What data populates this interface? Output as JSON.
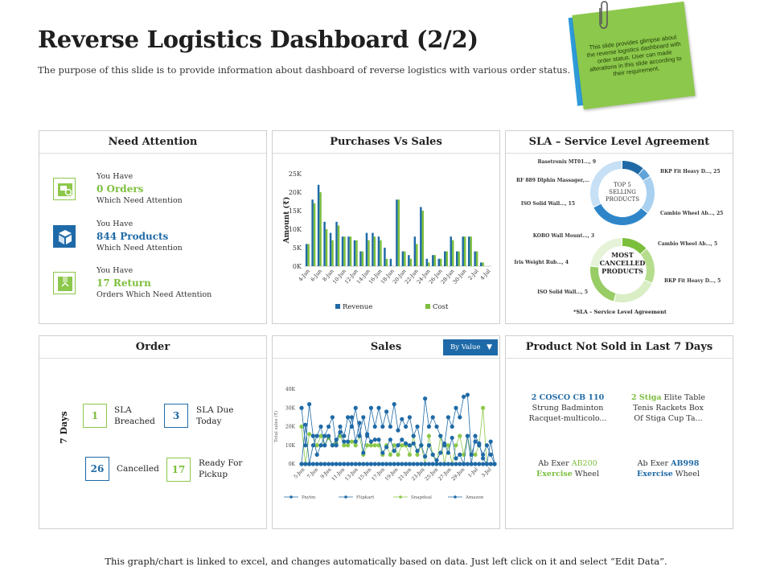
{
  "header": {
    "title": "Reverse Logistics Dashboard (2/2)",
    "subtitle": "The purpose of this slide is to provide information about dashboard of reverse logistics with various order status."
  },
  "sticky_note": {
    "text": "This slide provides glimpse about the reverse logistics dashboard with order status. User can made alterations in this slide according to their requirement."
  },
  "need_attention": {
    "title": "Need Attention",
    "items": [
      {
        "prefix": "You Have",
        "value": "0 Orders",
        "suffix": "Which Need Attention",
        "icon": "cart-search-icon"
      },
      {
        "prefix": "You Have",
        "value": "844 Products",
        "suffix": "Which Need Attention",
        "icon": "boxes-icon"
      },
      {
        "prefix": "You Have",
        "value": "17 Return",
        "suffix": "Orders Which Need Attention",
        "icon": "return-box-icon"
      }
    ]
  },
  "purchases_vs_sales": {
    "title": "Purchases Vs Sales",
    "legend": [
      "Revenue",
      "Cost"
    ]
  },
  "sla": {
    "title": "SLA – Service Level Agreement",
    "top_center": "TOP 5 SELLING PRODUCTS",
    "top_labels": [
      "Basetronix MT01..., 9",
      "RF 889 Dlphin Massager,...",
      "ISO Solid Wall..., 15",
      "BKP Fit Heavy D..., 25",
      "Cambio Wheel Ab..., 25"
    ],
    "bottom_center": "MOST CANCELLED PRODUCTS",
    "bottom_labels": [
      "KOBO Wall Mount..., 3",
      "Iris Weight Rub..., 4",
      "ISO Solid Wall..., 5",
      "Cambio Wheel Ab..., 5",
      "BKP Fit Heavy D..., 5"
    ],
    "note": "*SLA – Service Level Agreement",
    "colors": {
      "top": [
        "#1f6aa6",
        "#5fa3d9",
        "#a9d0f0",
        "#2e86c9",
        "#c7e0f5"
      ],
      "bottom": [
        "#7cbf3d",
        "#b6dc8d",
        "#d9eec4",
        "#98cc64",
        "#e6f3d8"
      ]
    }
  },
  "order": {
    "title": "Order",
    "days_label": "7 Days",
    "boxes": [
      {
        "num": "1",
        "label1": "SLA",
        "label2": "Breached"
      },
      {
        "num": "3",
        "label1": "SLA Due",
        "label2": "Today"
      },
      {
        "num": "26",
        "label1": "Cancelled",
        "label2": ""
      },
      {
        "num": "17",
        "label1": "Ready For",
        "label2": "Pickup"
      }
    ]
  },
  "sales": {
    "title": "Sales",
    "dropdown": "By Value",
    "legend": [
      "Paytm",
      "Flipkart",
      "Snapdeal",
      "Amazon"
    ]
  },
  "not_sold": {
    "title": "Product Not Sold in Last 7 Days",
    "items": [
      {
        "a": "2 COSCO CB 110",
        "b": "Strung Badminton",
        "c": "Racquet-multicolo..."
      },
      {
        "a1": "2 Stiga",
        "a2": " Elite Table",
        "b": "Tenis Rackets Box",
        "c": "Of Stiga Cup Ta..."
      },
      {
        "a1": "Ab Exer ",
        "a2": "AB200",
        "b1": "Exercise",
        "b2": " Wheel"
      },
      {
        "a1": "Ab Exer ",
        "a2": "AB998",
        "b1": "Exercise",
        "b2": " Wheel"
      }
    ]
  },
  "footer": {
    "text": "This graph/chart  is linked to excel, and changes automatically  based on data. Just left click on it and select “Edit Data”."
  },
  "chart_data": [
    {
      "type": "bar",
      "title": "Purchases Vs Sales",
      "ylabel": "Amount (₹)",
      "ylim": [
        0,
        25000
      ],
      "yticks": [
        "0K",
        "5K",
        "10K",
        "15K",
        "20K",
        "25K"
      ],
      "categories": [
        "4-Jun",
        "5-Jun",
        "6-Jun",
        "7-Jun",
        "8-Jun",
        "9-Jun",
        "10-Jun",
        "11-Jun",
        "12-Jun",
        "13-Jun",
        "14-Jun",
        "15-Jun",
        "16-Jun",
        "17-Jun",
        "18-Jun",
        "19-Jun",
        "20-Jun",
        "21-Jun",
        "22-Jun",
        "23-Jun",
        "24-Jun",
        "25-Jun",
        "26-Jun",
        "27-Jun",
        "28-Jun",
        "29-Jun",
        "30-Jun",
        "1-Jul",
        "2-Jul",
        "3-Jul",
        "4-Jul"
      ],
      "tick_labels": [
        "4-Jun",
        "6-Jun",
        "8-Jun",
        "10-Jun",
        "12-Jun",
        "14-Jun",
        "16-Jun",
        "18-Jun",
        "20-Jun",
        "22-Jun",
        "24-Jun",
        "26-Jun",
        "28-Jun",
        "30-Jun",
        "2-Jul",
        "4-Jul"
      ],
      "series": [
        {
          "name": "Revenue",
          "color": "#1f6aa6",
          "values": [
            6000,
            18000,
            22000,
            12000,
            9000,
            12000,
            8000,
            8000,
            7000,
            4000,
            9000,
            9000,
            8000,
            5000,
            2000,
            18000,
            4000,
            3000,
            8000,
            16000,
            2000,
            3000,
            2000,
            4000,
            8000,
            4000,
            8000,
            8000,
            4000,
            1000,
            0
          ]
        },
        {
          "name": "Cost",
          "color": "#7cbf3d",
          "values": [
            6000,
            17000,
            20000,
            10000,
            7000,
            11000,
            8000,
            8000,
            7000,
            4000,
            7000,
            8000,
            7000,
            2000,
            0,
            18000,
            4000,
            2000,
            6000,
            15000,
            1000,
            3000,
            2000,
            4000,
            7000,
            4000,
            8000,
            8000,
            4000,
            1000,
            0
          ]
        }
      ]
    },
    {
      "type": "line",
      "title": "Sales",
      "ylabel": "Total sales (₹)",
      "ylim": [
        0,
        40000
      ],
      "yticks": [
        "0K",
        "10K",
        "20K",
        "30K",
        "40K"
      ],
      "tick_labels": [
        "5-Jun",
        "7-Jun",
        "9-Jun",
        "11-Jun",
        "13-Jun",
        "15-Jun",
        "17-Jun",
        "19-Jun",
        "21-Jun",
        "23-Jun",
        "25-Jun",
        "27-Jun",
        "29-Jun",
        "1-Jul",
        "3-Jul"
      ],
      "series": [
        {
          "name": "Paytm",
          "color": "#1f6aa6",
          "values": [
            0,
            0,
            0,
            0,
            0,
            0,
            0,
            0,
            0,
            0,
            0,
            0,
            0,
            0,
            0,
            0,
            0,
            0,
            0,
            0,
            0,
            0,
            0,
            0,
            0,
            0,
            0,
            0,
            0,
            0,
            0,
            0,
            0,
            0,
            0,
            0,
            0,
            0,
            0,
            0,
            0,
            0,
            0,
            0,
            0,
            0,
            0,
            0,
            0,
            0,
            0
          ]
        },
        {
          "name": "Flipkart",
          "color": "#1f6aa6",
          "values": [
            0,
            21000,
            0,
            10000,
            15000,
            20000,
            10000,
            15000,
            10000,
            13000,
            17000,
            12000,
            12000,
            25000,
            12000,
            22000,
            6000,
            16000,
            12000,
            13000,
            13000,
            6000,
            9000,
            13000,
            7000,
            10000,
            13000,
            11000,
            10000,
            11000,
            7000,
            10000,
            4000,
            10000,
            5000,
            2000,
            6000,
            11000,
            6000,
            14000,
            3000,
            5000,
            0,
            15000,
            0,
            15000,
            11000,
            3000,
            0,
            12000,
            0
          ]
        },
        {
          "name": "Snapdeal",
          "color": "#8cc84b",
          "values": [
            20000,
            0,
            16000,
            15000,
            10000,
            15000,
            10000,
            14000,
            10000,
            11000,
            15000,
            10000,
            10000,
            12000,
            10000,
            15000,
            5000,
            10000,
            10000,
            10000,
            10000,
            5000,
            10000,
            5000,
            10000,
            5000,
            10000,
            10000,
            5000,
            15000,
            5000,
            10000,
            0,
            15000,
            5000,
            0,
            15000,
            0,
            10000,
            0,
            10000,
            15000,
            5000,
            15000,
            5000,
            5000,
            10000,
            30000,
            0,
            0,
            0
          ]
        },
        {
          "name": "Amazon",
          "color": "#1f6aa6",
          "values": [
            30000,
            10000,
            32000,
            15000,
            5000,
            10000,
            15000,
            20000,
            25000,
            10000,
            20000,
            15000,
            25000,
            20000,
            30000,
            15000,
            25000,
            15000,
            30000,
            20000,
            30000,
            20000,
            28000,
            20000,
            32000,
            18000,
            24000,
            20000,
            25000,
            15000,
            20000,
            10000,
            35000,
            20000,
            25000,
            20000,
            15000,
            10000,
            25000,
            20000,
            30000,
            25000,
            36000,
            37000,
            5000,
            12000,
            10000,
            5000,
            10000,
            5000,
            0
          ]
        }
      ]
    },
    {
      "type": "pie",
      "title": "TOP 5 SELLING PRODUCTS",
      "labels": [
        "Basetronix MT01...",
        "RF 889 Dlphin Massager,...",
        "ISO Solid Wall...",
        "BKP Fit Heavy D...",
        "Cambio Wheel Ab..."
      ],
      "values": [
        9,
        0,
        15,
        25,
        25
      ]
    },
    {
      "type": "pie",
      "title": "MOST CANCELLED PRODUCTS",
      "labels": [
        "KOBO Wall Mount...",
        "Iris Weight Rub...",
        "ISO Solid Wall...",
        "Cambio Wheel Ab...",
        "BKP Fit Heavy D..."
      ],
      "values": [
        3,
        4,
        5,
        5,
        5
      ]
    }
  ]
}
